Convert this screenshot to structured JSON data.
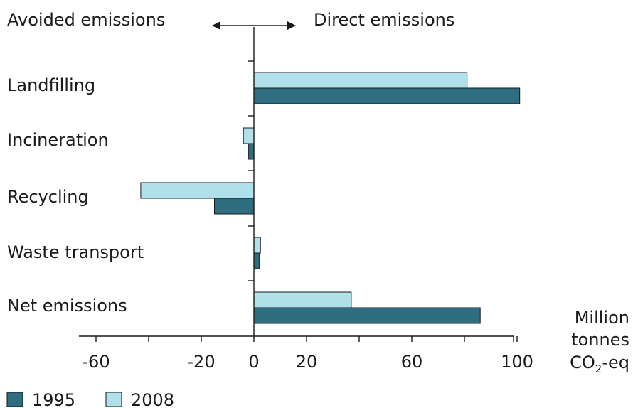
{
  "chart_data": {
    "type": "bar",
    "orientation": "horizontal",
    "header_left": "Avoided emissions",
    "header_right": "Direct emissions",
    "categories": [
      "Landfilling",
      "Incineration",
      "Recycling",
      "Waste transport",
      "Net emissions"
    ],
    "series": [
      {
        "name": "1995",
        "color": "#2e6e80",
        "values": [
          101,
          -2,
          -15,
          2,
          86
        ]
      },
      {
        "name": "2008",
        "color": "#b0e0ea",
        "values": [
          81,
          -4,
          -43,
          2.5,
          37
        ]
      }
    ],
    "x_ticks": [
      "-60",
      "-20",
      "0",
      "20",
      "60",
      "100"
    ],
    "x_tick_values": [
      -60,
      -20,
      0,
      20,
      60,
      100
    ],
    "xlim": [
      -66,
      101
    ],
    "unit_label": {
      "line1": "Million",
      "line2": "tonnes",
      "co": "CO",
      "sub": "2",
      "rest": "-eq"
    },
    "legend_position": "bottom-left",
    "grid": false
  }
}
